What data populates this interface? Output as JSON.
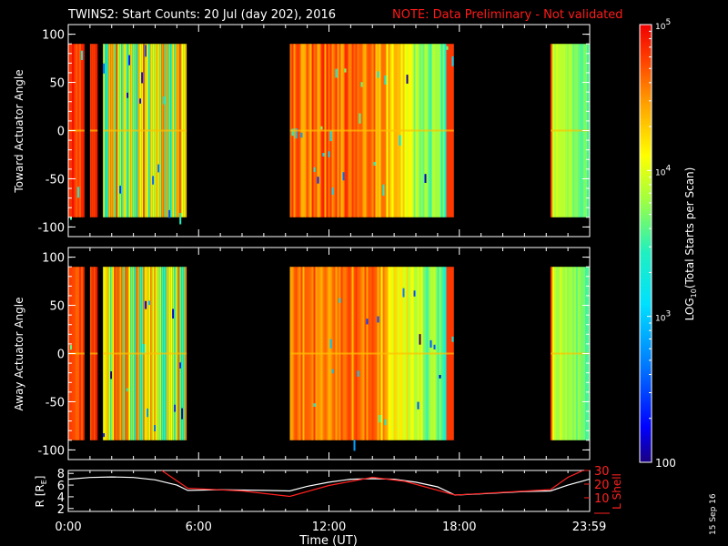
{
  "header": {
    "title": "TWINS2: Start Counts: 20 Jul (day 202), 2016",
    "note": "NOTE: Data Preliminary - Not validated",
    "date_stamp": "15 Sep 16"
  },
  "colors": {
    "background": "#000000",
    "axes": "#ffffff",
    "note": "#ff1a1a",
    "r_line": "#ffffff",
    "l_shell_line": "#ff2020"
  },
  "chart_data": [
    {
      "type": "heatmap",
      "ylabel": "Toward Actuator Angle",
      "ylim": [
        -110,
        110
      ],
      "yticks": [
        100,
        50,
        0,
        -50,
        -100
      ],
      "xlim": [
        0,
        24
      ],
      "x_units": "hours UT",
      "data_ylim": [
        -90,
        90
      ],
      "data_blocks": [
        {
          "start": 0.0,
          "end": 0.75,
          "level": "high"
        },
        {
          "start": 1.0,
          "end": 1.35,
          "level": "high"
        },
        {
          "start": 1.6,
          "end": 5.45,
          "level": "mixed"
        },
        {
          "start": 10.2,
          "end": 17.75,
          "level": "high-to-mid"
        },
        {
          "start": 22.2,
          "end": 23.98,
          "level": "mid"
        }
      ]
    },
    {
      "type": "heatmap",
      "ylabel": "Away Actuator Angle",
      "ylim": [
        -110,
        110
      ],
      "yticks": [
        100,
        50,
        0,
        -50,
        -100
      ],
      "xlim": [
        0,
        24
      ],
      "x_units": "hours UT",
      "data_ylim": [
        -90,
        90
      ],
      "data_blocks": [
        {
          "start": 0.0,
          "end": 0.75,
          "level": "high"
        },
        {
          "start": 1.0,
          "end": 1.35,
          "level": "high"
        },
        {
          "start": 1.6,
          "end": 5.45,
          "level": "mixed"
        },
        {
          "start": 10.2,
          "end": 17.75,
          "level": "high-to-mid"
        },
        {
          "start": 22.2,
          "end": 23.98,
          "level": "mid"
        }
      ]
    },
    {
      "type": "line",
      "ylabel": "R [R",
      "ylabel_sub": "E",
      "ylabel_close": "]",
      "y2label": "L Shell",
      "xlabel": "Time (UT)",
      "xticks": [
        "0:00",
        "6:00",
        "12:00",
        "18:00",
        "23:59"
      ],
      "xtick_values": [
        0,
        6,
        12,
        18,
        23.98
      ],
      "ylim": [
        1.5,
        8.5
      ],
      "yticks": [
        2,
        4,
        6,
        8
      ],
      "y2lim": [
        0,
        30
      ],
      "y2ticks": [
        10,
        20,
        30
      ],
      "series": [
        {
          "axis": "left",
          "color": "#ffffff",
          "x": [
            0,
            1,
            2,
            3,
            4,
            5,
            5.5,
            7,
            9,
            10.2,
            11,
            12,
            13,
            14,
            15,
            16,
            17,
            17.8,
            19,
            21,
            22.2,
            23,
            23.98
          ],
          "y": [
            7.0,
            7.3,
            7.4,
            7.3,
            6.9,
            6.0,
            5.1,
            5.2,
            5.1,
            5.0,
            5.8,
            6.5,
            7.0,
            7.1,
            7.0,
            6.5,
            5.7,
            4.3,
            4.5,
            4.9,
            5.0,
            6.0,
            7.0
          ]
        },
        {
          "axis": "right",
          "x": [
            4.3,
            5.5,
            8,
            10.2,
            12,
            14,
            15.5,
            17.8,
            20,
            22.2,
            23,
            23.98
          ],
          "y": [
            30,
            17,
            15,
            11,
            19,
            25,
            22,
            12,
            14,
            16,
            25,
            32
          ]
        }
      ]
    },
    {
      "type": "colorbar",
      "ylabel": "LOG",
      "ylabel_sub": "10",
      "ylabel_tail": "(Total Starts per Scan)",
      "scale": "log",
      "range": [
        100,
        100000
      ],
      "ticks": [
        {
          "value": 100000,
          "base": "10",
          "exp": "5"
        },
        {
          "value": 10000,
          "base": "10",
          "exp": "4"
        },
        {
          "value": 1000,
          "base": "10",
          "exp": "3"
        },
        {
          "value": 100,
          "label": "100"
        }
      ]
    }
  ]
}
